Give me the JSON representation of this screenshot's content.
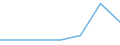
{
  "chart_data": {
    "type": "line",
    "categories": [
      null,
      null,
      null,
      null,
      null,
      null,
      null
    ],
    "values": [
      13,
      13,
      13,
      13,
      24,
      100,
      55
    ],
    "color": "#6cb4e4",
    "ylim": [
      0,
      105
    ],
    "tick_labels": false,
    "grid": false
  }
}
